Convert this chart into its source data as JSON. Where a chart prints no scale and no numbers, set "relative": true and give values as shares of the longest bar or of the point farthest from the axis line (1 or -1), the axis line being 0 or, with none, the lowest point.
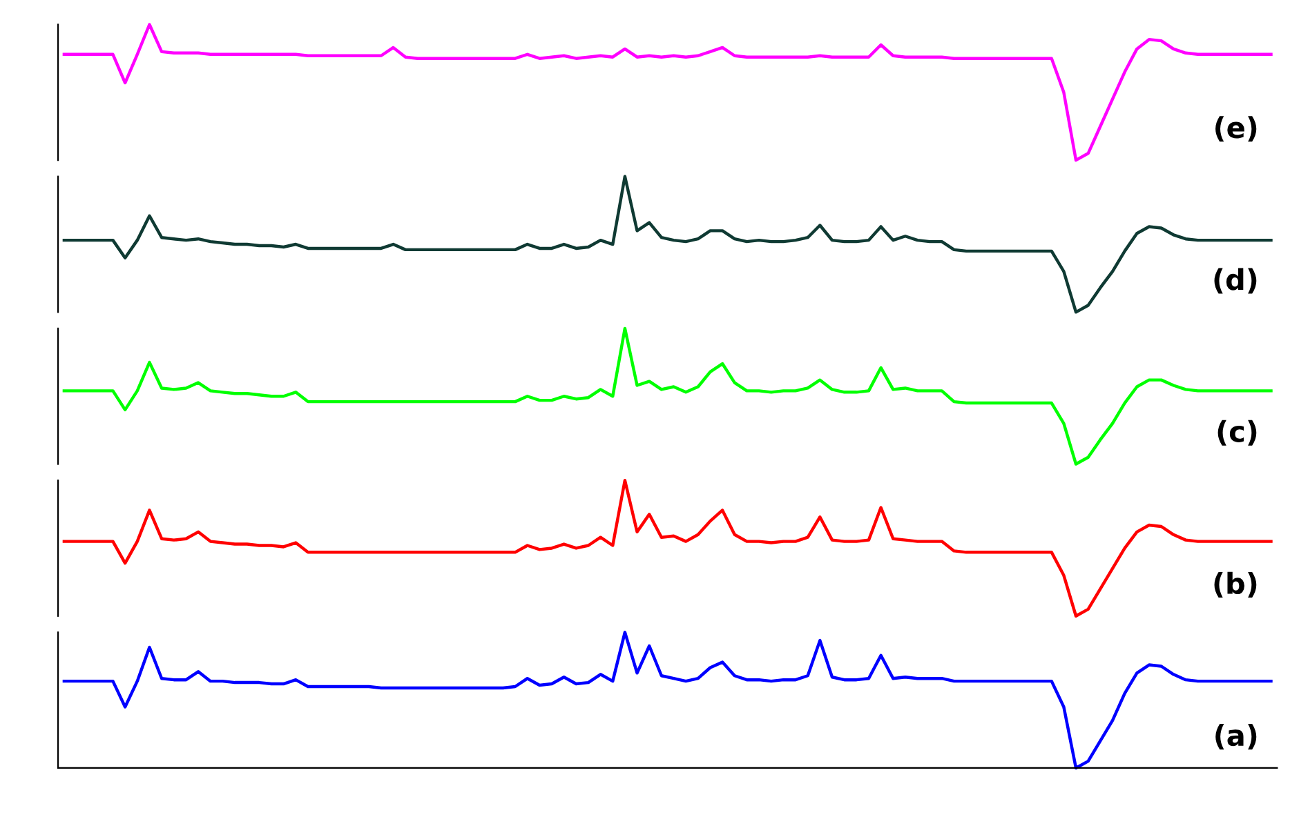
{
  "chart_data": [
    {
      "type": "line",
      "relative": true,
      "annotations": [
        "(e)"
      ],
      "categories": [
        null,
        null,
        null,
        null,
        null,
        null,
        null,
        null,
        null,
        null,
        null,
        null,
        null,
        null,
        null,
        null,
        null,
        null,
        null,
        null,
        null,
        null,
        null,
        null,
        null,
        null,
        null,
        null,
        null,
        null,
        null,
        null,
        null,
        null,
        null,
        null,
        null,
        null,
        null,
        null,
        null,
        null,
        null,
        null,
        null,
        null,
        null,
        null,
        null,
        null,
        null,
        null,
        null,
        null,
        null,
        null,
        null,
        null,
        null,
        null,
        null,
        null,
        null,
        null,
        null,
        null,
        null,
        null,
        null,
        null,
        null,
        null,
        null,
        null,
        null,
        null,
        null,
        null,
        null,
        null,
        null,
        null,
        null,
        null,
        null,
        null,
        null,
        null,
        null,
        null,
        null,
        null,
        null,
        null,
        null,
        null,
        null,
        null,
        null,
        null
      ],
      "series": [
        {
          "color": "#ff00ff",
          "values": [
            0.78,
            0.78,
            0.78,
            0.78,
            0.78,
            0.57,
            0.78,
            1.0,
            0.8,
            0.79,
            0.79,
            0.79,
            0.78,
            0.78,
            0.78,
            0.78,
            0.78,
            0.78,
            0.78,
            0.78,
            0.77,
            0.77,
            0.77,
            0.77,
            0.77,
            0.77,
            0.77,
            0.83,
            0.76,
            0.75,
            0.75,
            0.75,
            0.75,
            0.75,
            0.75,
            0.75,
            0.75,
            0.75,
            0.78,
            0.75,
            0.76,
            0.77,
            0.75,
            0.76,
            0.77,
            0.76,
            0.82,
            0.76,
            0.77,
            0.76,
            0.77,
            0.76,
            0.77,
            0.8,
            0.83,
            0.77,
            0.76,
            0.76,
            0.76,
            0.76,
            0.76,
            0.76,
            0.77,
            0.76,
            0.76,
            0.76,
            0.76,
            0.85,
            0.77,
            0.76,
            0.76,
            0.76,
            0.76,
            0.75,
            0.75,
            0.75,
            0.75,
            0.75,
            0.75,
            0.75,
            0.75,
            0.75,
            0.5,
            0,
            0.05,
            0.25,
            0.45,
            0.65,
            0.82,
            0.89,
            0.88,
            0.82,
            0.79,
            0.78,
            0.78,
            0.78,
            0.78,
            0.78,
            0.78,
            0.78
          ]
        }
      ]
    },
    {
      "type": "line",
      "relative": true,
      "annotations": [
        "(d)"
      ],
      "categories": [
        null,
        null,
        null,
        null,
        null,
        null,
        null,
        null,
        null,
        null,
        null,
        null,
        null,
        null,
        null,
        null,
        null,
        null,
        null,
        null,
        null,
        null,
        null,
        null,
        null,
        null,
        null,
        null,
        null,
        null,
        null,
        null,
        null,
        null,
        null,
        null,
        null,
        null,
        null,
        null,
        null,
        null,
        null,
        null,
        null,
        null,
        null,
        null,
        null,
        null,
        null,
        null,
        null,
        null,
        null,
        null,
        null,
        null,
        null,
        null,
        null,
        null,
        null,
        null,
        null,
        null,
        null,
        null,
        null,
        null,
        null,
        null,
        null,
        null,
        null,
        null,
        null,
        null,
        null,
        null,
        null,
        null,
        null,
        null,
        null,
        null,
        null,
        null,
        null,
        null,
        null,
        null,
        null,
        null,
        null,
        null,
        null,
        null,
        null,
        null
      ],
      "series": [
        {
          "color": "#0f3a33",
          "values": [
            0.53,
            0.53,
            0.53,
            0.53,
            0.53,
            0.4,
            0.53,
            0.71,
            0.55,
            0.54,
            0.53,
            0.54,
            0.52,
            0.51,
            0.5,
            0.5,
            0.49,
            0.49,
            0.48,
            0.5,
            0.47,
            0.47,
            0.47,
            0.47,
            0.47,
            0.47,
            0.47,
            0.5,
            0.46,
            0.46,
            0.46,
            0.46,
            0.46,
            0.46,
            0.46,
            0.46,
            0.46,
            0.46,
            0.5,
            0.47,
            0.47,
            0.5,
            0.47,
            0.48,
            0.53,
            0.5,
            1.0,
            0.6,
            0.66,
            0.55,
            0.53,
            0.52,
            0.54,
            0.6,
            0.6,
            0.54,
            0.52,
            0.53,
            0.52,
            0.52,
            0.53,
            0.55,
            0.64,
            0.53,
            0.52,
            0.52,
            0.53,
            0.63,
            0.53,
            0.56,
            0.53,
            0.52,
            0.52,
            0.46,
            0.45,
            0.45,
            0.45,
            0.45,
            0.45,
            0.45,
            0.45,
            0.45,
            0.3,
            0,
            0.05,
            0.18,
            0.3,
            0.45,
            0.58,
            0.63,
            0.62,
            0.57,
            0.54,
            0.53,
            0.53,
            0.53,
            0.53,
            0.53,
            0.53,
            0.53
          ]
        }
      ]
    },
    {
      "type": "line",
      "relative": true,
      "annotations": [
        "(c)"
      ],
      "categories": [
        null,
        null,
        null,
        null,
        null,
        null,
        null,
        null,
        null,
        null,
        null,
        null,
        null,
        null,
        null,
        null,
        null,
        null,
        null,
        null,
        null,
        null,
        null,
        null,
        null,
        null,
        null,
        null,
        null,
        null,
        null,
        null,
        null,
        null,
        null,
        null,
        null,
        null,
        null,
        null,
        null,
        null,
        null,
        null,
        null,
        null,
        null,
        null,
        null,
        null,
        null,
        null,
        null,
        null,
        null,
        null,
        null,
        null,
        null,
        null,
        null,
        null,
        null,
        null,
        null,
        null,
        null,
        null,
        null,
        null,
        null,
        null,
        null,
        null,
        null,
        null,
        null,
        null,
        null,
        null,
        null,
        null,
        null,
        null,
        null,
        null,
        null,
        null,
        null,
        null,
        null,
        null,
        null,
        null,
        null,
        null,
        null,
        null,
        null,
        null
      ],
      "series": [
        {
          "color": "#00ff00",
          "values": [
            0.54,
            0.54,
            0.54,
            0.54,
            0.54,
            0.4,
            0.54,
            0.75,
            0.56,
            0.55,
            0.56,
            0.6,
            0.54,
            0.53,
            0.52,
            0.52,
            0.51,
            0.5,
            0.5,
            0.53,
            0.46,
            0.46,
            0.46,
            0.46,
            0.46,
            0.46,
            0.46,
            0.46,
            0.46,
            0.46,
            0.46,
            0.46,
            0.46,
            0.46,
            0.46,
            0.46,
            0.46,
            0.46,
            0.5,
            0.47,
            0.47,
            0.5,
            0.48,
            0.49,
            0.55,
            0.5,
            1.0,
            0.58,
            0.61,
            0.55,
            0.57,
            0.53,
            0.57,
            0.68,
            0.74,
            0.6,
            0.54,
            0.54,
            0.53,
            0.54,
            0.54,
            0.56,
            0.62,
            0.55,
            0.53,
            0.53,
            0.54,
            0.71,
            0.55,
            0.56,
            0.54,
            0.54,
            0.54,
            0.46,
            0.45,
            0.45,
            0.45,
            0.45,
            0.45,
            0.45,
            0.45,
            0.45,
            0.3,
            0,
            0.05,
            0.18,
            0.3,
            0.45,
            0.57,
            0.62,
            0.62,
            0.58,
            0.55,
            0.54,
            0.54,
            0.54,
            0.54,
            0.54,
            0.54,
            0.54
          ]
        }
      ]
    },
    {
      "type": "line",
      "relative": true,
      "annotations": [
        "(b)"
      ],
      "categories": [
        null,
        null,
        null,
        null,
        null,
        null,
        null,
        null,
        null,
        null,
        null,
        null,
        null,
        null,
        null,
        null,
        null,
        null,
        null,
        null,
        null,
        null,
        null,
        null,
        null,
        null,
        null,
        null,
        null,
        null,
        null,
        null,
        null,
        null,
        null,
        null,
        null,
        null,
        null,
        null,
        null,
        null,
        null,
        null,
        null,
        null,
        null,
        null,
        null,
        null,
        null,
        null,
        null,
        null,
        null,
        null,
        null,
        null,
        null,
        null,
        null,
        null,
        null,
        null,
        null,
        null,
        null,
        null,
        null,
        null,
        null,
        null,
        null,
        null,
        null,
        null,
        null,
        null,
        null,
        null,
        null,
        null,
        null,
        null,
        null,
        null,
        null,
        null,
        null,
        null,
        null,
        null,
        null,
        null,
        null,
        null,
        null,
        null,
        null,
        null
      ],
      "series": [
        {
          "color": "#ff0000",
          "values": [
            0.55,
            0.55,
            0.55,
            0.55,
            0.55,
            0.39,
            0.55,
            0.78,
            0.57,
            0.56,
            0.57,
            0.62,
            0.55,
            0.54,
            0.53,
            0.53,
            0.52,
            0.52,
            0.51,
            0.54,
            0.47,
            0.47,
            0.47,
            0.47,
            0.47,
            0.47,
            0.47,
            0.47,
            0.47,
            0.47,
            0.47,
            0.47,
            0.47,
            0.47,
            0.47,
            0.47,
            0.47,
            0.47,
            0.52,
            0.49,
            0.5,
            0.53,
            0.5,
            0.52,
            0.58,
            0.52,
            1.0,
            0.62,
            0.75,
            0.58,
            0.59,
            0.55,
            0.6,
            0.7,
            0.78,
            0.6,
            0.55,
            0.55,
            0.54,
            0.55,
            0.55,
            0.58,
            0.73,
            0.56,
            0.55,
            0.55,
            0.56,
            0.8,
            0.57,
            0.56,
            0.55,
            0.55,
            0.55,
            0.48,
            0.47,
            0.47,
            0.47,
            0.47,
            0.47,
            0.47,
            0.47,
            0.47,
            0.3,
            0,
            0.05,
            0.2,
            0.35,
            0.5,
            0.62,
            0.67,
            0.66,
            0.6,
            0.56,
            0.55,
            0.55,
            0.55,
            0.55,
            0.55,
            0.55,
            0.55
          ]
        }
      ]
    },
    {
      "type": "line",
      "relative": true,
      "annotations": [
        "(a)"
      ],
      "categories": [
        null,
        null,
        null,
        null,
        null,
        null,
        null,
        null,
        null,
        null,
        null,
        null,
        null,
        null,
        null,
        null,
        null,
        null,
        null,
        null,
        null,
        null,
        null,
        null,
        null,
        null,
        null,
        null,
        null,
        null,
        null,
        null,
        null,
        null,
        null,
        null,
        null,
        null,
        null,
        null,
        null,
        null,
        null,
        null,
        null,
        null,
        null,
        null,
        null,
        null,
        null,
        null,
        null,
        null,
        null,
        null,
        null,
        null,
        null,
        null,
        null,
        null,
        null,
        null,
        null,
        null,
        null,
        null,
        null,
        null,
        null,
        null,
        null,
        null,
        null,
        null,
        null,
        null,
        null,
        null,
        null,
        null,
        null,
        null,
        null,
        null,
        null,
        null,
        null,
        null,
        null,
        null,
        null,
        null,
        null,
        null,
        null,
        null,
        null,
        null
      ],
      "series": [
        {
          "color": "#0000ff",
          "values": [
            0.64,
            0.64,
            0.64,
            0.64,
            0.64,
            0.45,
            0.64,
            0.89,
            0.66,
            0.65,
            0.65,
            0.71,
            0.64,
            0.64,
            0.63,
            0.63,
            0.63,
            0.62,
            0.62,
            0.65,
            0.6,
            0.6,
            0.6,
            0.6,
            0.6,
            0.6,
            0.59,
            0.59,
            0.59,
            0.59,
            0.59,
            0.59,
            0.59,
            0.59,
            0.59,
            0.59,
            0.59,
            0.6,
            0.66,
            0.61,
            0.62,
            0.67,
            0.62,
            0.63,
            0.69,
            0.64,
            1.0,
            0.7,
            0.9,
            0.68,
            0.66,
            0.64,
            0.66,
            0.74,
            0.78,
            0.68,
            0.65,
            0.65,
            0.64,
            0.65,
            0.65,
            0.68,
            0.94,
            0.67,
            0.65,
            0.65,
            0.66,
            0.83,
            0.66,
            0.67,
            0.66,
            0.66,
            0.66,
            0.64,
            0.64,
            0.64,
            0.64,
            0.64,
            0.64,
            0.64,
            0.64,
            0.64,
            0.45,
            0,
            0.05,
            0.2,
            0.35,
            0.55,
            0.7,
            0.76,
            0.75,
            0.69,
            0.65,
            0.64,
            0.64,
            0.64,
            0.64,
            0.64,
            0.64,
            0.64
          ]
        }
      ]
    }
  ]
}
